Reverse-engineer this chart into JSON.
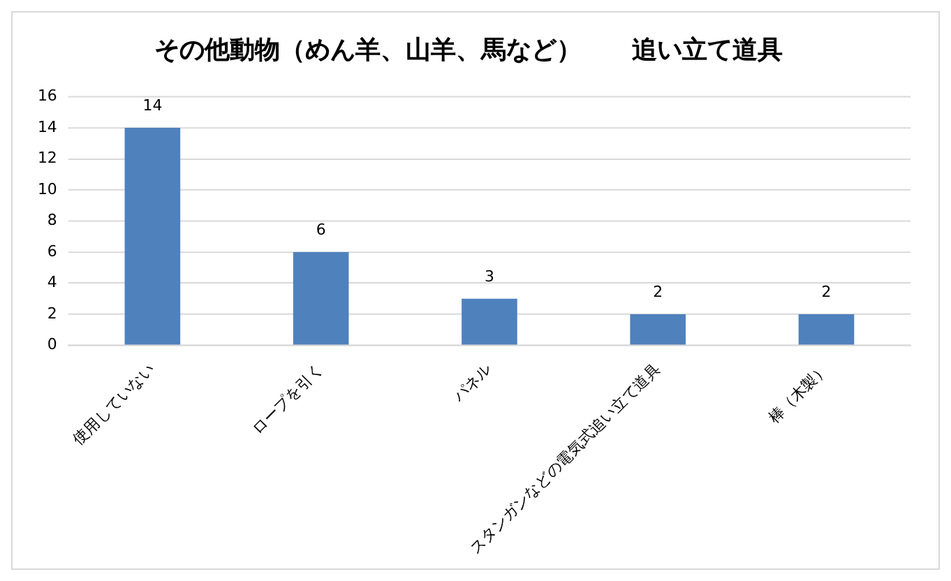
{
  "chart_data": {
    "type": "bar",
    "title": "その他動物（めん羊、山羊、馬など）　　追い立て道具",
    "categories": [
      "使用していない",
      "ロープを引く",
      "パネル",
      "スタンガンなどの電気式追い立て道具",
      "棒（木製）"
    ],
    "values": [
      14,
      6,
      3,
      2,
      2
    ],
    "color": "#4f81bd",
    "ylim": [
      0,
      16
    ],
    "yticks": [
      0,
      2,
      4,
      6,
      8,
      10,
      12,
      14,
      16
    ],
    "grid": "y",
    "data_labels": true,
    "legend": false
  }
}
